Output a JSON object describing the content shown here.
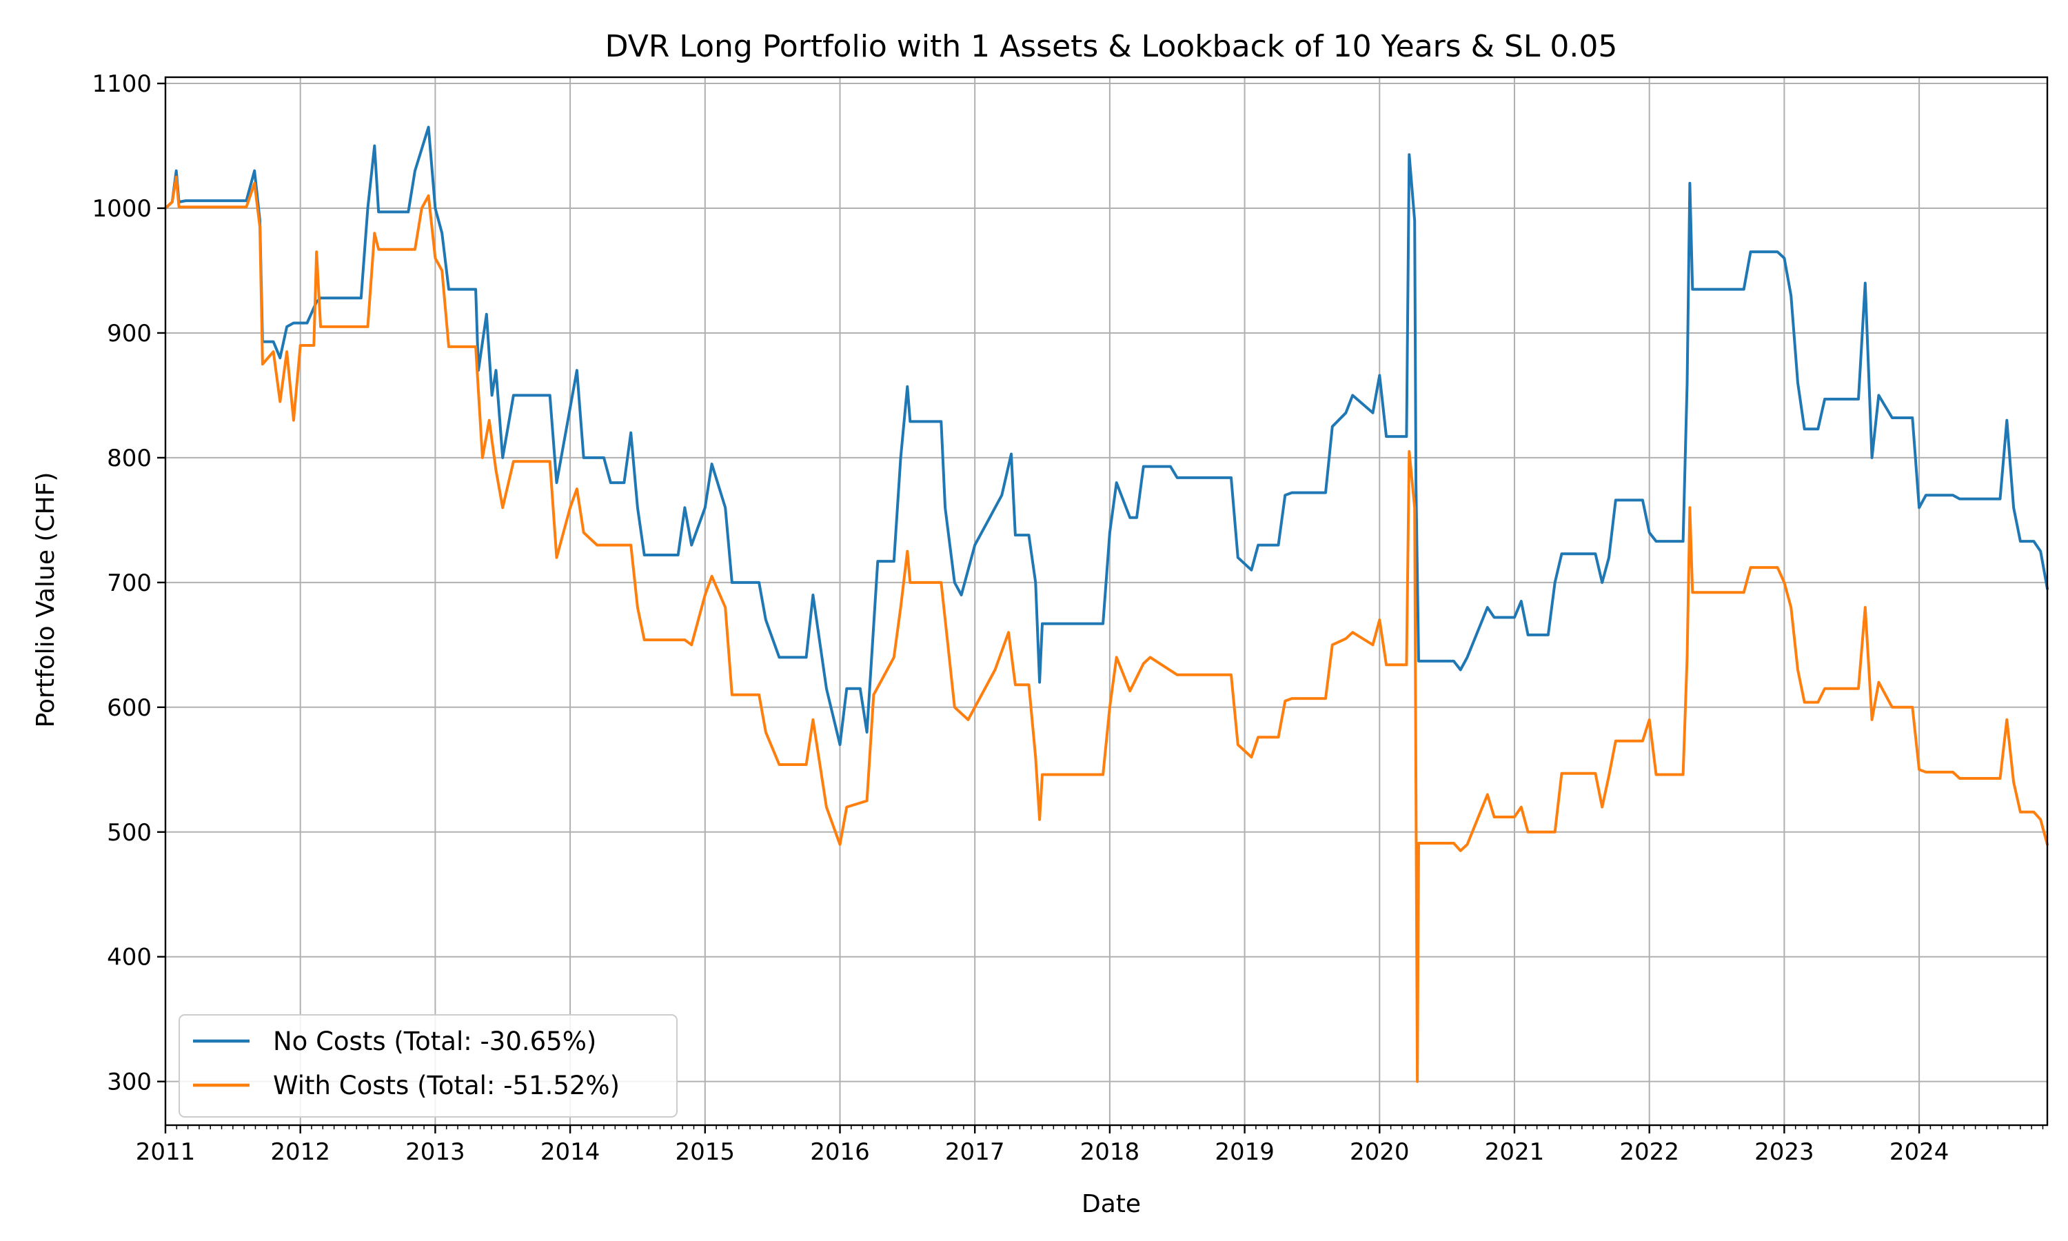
{
  "chart_data": {
    "type": "line",
    "title": "DVR Long Portfolio with 1 Assets & Lookback of 10 Years & SL 0.05",
    "xlabel": "Date",
    "ylabel": "Portfolio Value (CHF)",
    "xlim": [
      2011.0,
      2024.95
    ],
    "ylim": [
      265,
      1105
    ],
    "xticks": [
      "2011",
      "2012",
      "2013",
      "2014",
      "2015",
      "2016",
      "2017",
      "2018",
      "2019",
      "2020",
      "2021",
      "2022",
      "2023",
      "2024"
    ],
    "yticks": [
      300,
      400,
      500,
      600,
      700,
      800,
      900,
      1000,
      1100
    ],
    "grid": true,
    "legend_position": "lower-left",
    "series": [
      {
        "name": "No Costs (Total: -30.65%)",
        "color": "#1f77b4",
        "points": [
          [
            2011.0,
            1000
          ],
          [
            2011.05,
            1005
          ],
          [
            2011.08,
            1030
          ],
          [
            2011.1,
            1005
          ],
          [
            2011.15,
            1006
          ],
          [
            2011.6,
            1006
          ],
          [
            2011.66,
            1030
          ],
          [
            2011.7,
            990
          ],
          [
            2011.72,
            893
          ],
          [
            2011.8,
            893
          ],
          [
            2011.85,
            880
          ],
          [
            2011.9,
            905
          ],
          [
            2011.95,
            908
          ],
          [
            2012.05,
            908
          ],
          [
            2012.12,
            925
          ],
          [
            2012.15,
            928
          ],
          [
            2012.45,
            928
          ],
          [
            2012.5,
            1000
          ],
          [
            2012.55,
            1050
          ],
          [
            2012.58,
            997
          ],
          [
            2012.8,
            997
          ],
          [
            2012.85,
            1030
          ],
          [
            2012.95,
            1065
          ],
          [
            2013.0,
            1000
          ],
          [
            2013.05,
            980
          ],
          [
            2013.1,
            935
          ],
          [
            2013.3,
            935
          ],
          [
            2013.32,
            870
          ],
          [
            2013.38,
            915
          ],
          [
            2013.42,
            850
          ],
          [
            2013.45,
            870
          ],
          [
            2013.5,
            800
          ],
          [
            2013.58,
            850
          ],
          [
            2013.85,
            850
          ],
          [
            2013.9,
            780
          ],
          [
            2014.0,
            840
          ],
          [
            2014.05,
            870
          ],
          [
            2014.1,
            800
          ],
          [
            2014.25,
            800
          ],
          [
            2014.3,
            780
          ],
          [
            2014.4,
            780
          ],
          [
            2014.45,
            820
          ],
          [
            2014.5,
            760
          ],
          [
            2014.55,
            722
          ],
          [
            2014.8,
            722
          ],
          [
            2014.85,
            760
          ],
          [
            2014.9,
            730
          ],
          [
            2015.0,
            760
          ],
          [
            2015.05,
            795
          ],
          [
            2015.15,
            760
          ],
          [
            2015.2,
            700
          ],
          [
            2015.4,
            700
          ],
          [
            2015.45,
            670
          ],
          [
            2015.55,
            640
          ],
          [
            2015.75,
            640
          ],
          [
            2015.8,
            690
          ],
          [
            2015.9,
            615
          ],
          [
            2016.0,
            570
          ],
          [
            2016.05,
            615
          ],
          [
            2016.15,
            615
          ],
          [
            2016.2,
            580
          ],
          [
            2016.28,
            717
          ],
          [
            2016.4,
            717
          ],
          [
            2016.45,
            800
          ],
          [
            2016.5,
            857
          ],
          [
            2016.52,
            829
          ],
          [
            2016.75,
            829
          ],
          [
            2016.78,
            760
          ],
          [
            2016.85,
            700
          ],
          [
            2016.9,
            690
          ],
          [
            2017.0,
            730
          ],
          [
            2017.1,
            750
          ],
          [
            2017.2,
            770
          ],
          [
            2017.27,
            803
          ],
          [
            2017.3,
            738
          ],
          [
            2017.4,
            738
          ],
          [
            2017.45,
            700
          ],
          [
            2017.48,
            620
          ],
          [
            2017.5,
            667
          ],
          [
            2017.95,
            667
          ],
          [
            2018.0,
            740
          ],
          [
            2018.05,
            780
          ],
          [
            2018.15,
            752
          ],
          [
            2018.2,
            752
          ],
          [
            2018.25,
            793
          ],
          [
            2018.45,
            793
          ],
          [
            2018.5,
            784
          ],
          [
            2018.9,
            784
          ],
          [
            2018.95,
            720
          ],
          [
            2019.05,
            710
          ],
          [
            2019.1,
            730
          ],
          [
            2019.25,
            730
          ],
          [
            2019.3,
            770
          ],
          [
            2019.35,
            772
          ],
          [
            2019.6,
            772
          ],
          [
            2019.65,
            825
          ],
          [
            2019.75,
            836
          ],
          [
            2019.8,
            850
          ],
          [
            2019.95,
            836
          ],
          [
            2020.0,
            866
          ],
          [
            2020.05,
            817
          ],
          [
            2020.2,
            817
          ],
          [
            2020.22,
            1043
          ],
          [
            2020.26,
            990
          ],
          [
            2020.27,
            780
          ],
          [
            2020.29,
            637
          ],
          [
            2020.55,
            637
          ],
          [
            2020.6,
            630
          ],
          [
            2020.65,
            640
          ],
          [
            2020.8,
            680
          ],
          [
            2020.85,
            672
          ],
          [
            2021.0,
            672
          ],
          [
            2021.05,
            685
          ],
          [
            2021.1,
            658
          ],
          [
            2021.25,
            658
          ],
          [
            2021.3,
            700
          ],
          [
            2021.35,
            723
          ],
          [
            2021.6,
            723
          ],
          [
            2021.65,
            700
          ],
          [
            2021.7,
            720
          ],
          [
            2021.75,
            766
          ],
          [
            2021.95,
            766
          ],
          [
            2022.0,
            740
          ],
          [
            2022.05,
            733
          ],
          [
            2022.25,
            733
          ],
          [
            2022.28,
            860
          ],
          [
            2022.3,
            1020
          ],
          [
            2022.32,
            935
          ],
          [
            2022.7,
            935
          ],
          [
            2022.75,
            965
          ],
          [
            2022.95,
            965
          ],
          [
            2023.0,
            960
          ],
          [
            2023.05,
            930
          ],
          [
            2023.1,
            860
          ],
          [
            2023.15,
            823
          ],
          [
            2023.25,
            823
          ],
          [
            2023.3,
            847
          ],
          [
            2023.55,
            847
          ],
          [
            2023.6,
            940
          ],
          [
            2023.65,
            800
          ],
          [
            2023.7,
            850
          ],
          [
            2023.8,
            832
          ],
          [
            2023.95,
            832
          ],
          [
            2024.0,
            760
          ],
          [
            2024.05,
            770
          ],
          [
            2024.25,
            770
          ],
          [
            2024.3,
            767
          ],
          [
            2024.6,
            767
          ],
          [
            2024.65,
            830
          ],
          [
            2024.7,
            760
          ],
          [
            2024.75,
            733
          ],
          [
            2024.85,
            733
          ],
          [
            2024.9,
            725
          ],
          [
            2024.95,
            695
          ]
        ]
      },
      {
        "name": "With Costs (Total: -51.52%)",
        "color": "#ff7f0e",
        "points": [
          [
            2011.0,
            1000
          ],
          [
            2011.05,
            1005
          ],
          [
            2011.08,
            1025
          ],
          [
            2011.1,
            1001
          ],
          [
            2011.6,
            1001
          ],
          [
            2011.66,
            1020
          ],
          [
            2011.7,
            985
          ],
          [
            2011.72,
            875
          ],
          [
            2011.8,
            885
          ],
          [
            2011.85,
            845
          ],
          [
            2011.9,
            885
          ],
          [
            2011.95,
            830
          ],
          [
            2012.0,
            890
          ],
          [
            2012.1,
            890
          ],
          [
            2012.12,
            965
          ],
          [
            2012.15,
            905
          ],
          [
            2012.5,
            905
          ],
          [
            2012.55,
            980
          ],
          [
            2012.58,
            967
          ],
          [
            2012.85,
            967
          ],
          [
            2012.9,
            1000
          ],
          [
            2012.95,
            1010
          ],
          [
            2013.0,
            960
          ],
          [
            2013.05,
            950
          ],
          [
            2013.1,
            889
          ],
          [
            2013.3,
            889
          ],
          [
            2013.35,
            800
          ],
          [
            2013.4,
            830
          ],
          [
            2013.45,
            790
          ],
          [
            2013.5,
            760
          ],
          [
            2013.58,
            797
          ],
          [
            2013.85,
            797
          ],
          [
            2013.9,
            720
          ],
          [
            2014.0,
            760
          ],
          [
            2014.05,
            775
          ],
          [
            2014.1,
            740
          ],
          [
            2014.2,
            730
          ],
          [
            2014.45,
            730
          ],
          [
            2014.5,
            680
          ],
          [
            2014.55,
            654
          ],
          [
            2014.85,
            654
          ],
          [
            2014.9,
            650
          ],
          [
            2015.0,
            690
          ],
          [
            2015.05,
            705
          ],
          [
            2015.15,
            680
          ],
          [
            2015.2,
            610
          ],
          [
            2015.4,
            610
          ],
          [
            2015.45,
            580
          ],
          [
            2015.55,
            554
          ],
          [
            2015.75,
            554
          ],
          [
            2015.8,
            590
          ],
          [
            2015.9,
            520
          ],
          [
            2016.0,
            490
          ],
          [
            2016.05,
            520
          ],
          [
            2016.2,
            525
          ],
          [
            2016.25,
            610
          ],
          [
            2016.4,
            640
          ],
          [
            2016.45,
            680
          ],
          [
            2016.5,
            725
          ],
          [
            2016.52,
            700
          ],
          [
            2016.75,
            700
          ],
          [
            2016.8,
            650
          ],
          [
            2016.85,
            600
          ],
          [
            2016.95,
            590
          ],
          [
            2017.05,
            610
          ],
          [
            2017.15,
            630
          ],
          [
            2017.25,
            660
          ],
          [
            2017.3,
            618
          ],
          [
            2017.4,
            618
          ],
          [
            2017.45,
            560
          ],
          [
            2017.48,
            510
          ],
          [
            2017.5,
            546
          ],
          [
            2017.95,
            546
          ],
          [
            2018.0,
            600
          ],
          [
            2018.05,
            640
          ],
          [
            2018.15,
            613
          ],
          [
            2018.25,
            635
          ],
          [
            2018.3,
            640
          ],
          [
            2018.5,
            626
          ],
          [
            2018.9,
            626
          ],
          [
            2018.95,
            570
          ],
          [
            2019.05,
            560
          ],
          [
            2019.1,
            576
          ],
          [
            2019.25,
            576
          ],
          [
            2019.3,
            605
          ],
          [
            2019.35,
            607
          ],
          [
            2019.6,
            607
          ],
          [
            2019.65,
            650
          ],
          [
            2019.75,
            655
          ],
          [
            2019.8,
            660
          ],
          [
            2019.95,
            650
          ],
          [
            2020.0,
            670
          ],
          [
            2020.05,
            634
          ],
          [
            2020.2,
            634
          ],
          [
            2020.22,
            805
          ],
          [
            2020.26,
            760
          ],
          [
            2020.28,
            300
          ],
          [
            2020.29,
            491
          ],
          [
            2020.55,
            491
          ],
          [
            2020.6,
            485
          ],
          [
            2020.65,
            490
          ],
          [
            2020.8,
            530
          ],
          [
            2020.85,
            512
          ],
          [
            2021.0,
            512
          ],
          [
            2021.05,
            520
          ],
          [
            2021.1,
            500
          ],
          [
            2021.3,
            500
          ],
          [
            2021.35,
            547
          ],
          [
            2021.6,
            547
          ],
          [
            2021.65,
            520
          ],
          [
            2021.7,
            545
          ],
          [
            2021.75,
            573
          ],
          [
            2021.95,
            573
          ],
          [
            2022.0,
            590
          ],
          [
            2022.05,
            546
          ],
          [
            2022.25,
            546
          ],
          [
            2022.28,
            640
          ],
          [
            2022.3,
            760
          ],
          [
            2022.32,
            692
          ],
          [
            2022.7,
            692
          ],
          [
            2022.75,
            712
          ],
          [
            2022.95,
            712
          ],
          [
            2023.0,
            700
          ],
          [
            2023.05,
            680
          ],
          [
            2023.1,
            630
          ],
          [
            2023.15,
            604
          ],
          [
            2023.25,
            604
          ],
          [
            2023.3,
            615
          ],
          [
            2023.55,
            615
          ],
          [
            2023.6,
            680
          ],
          [
            2023.65,
            590
          ],
          [
            2023.7,
            620
          ],
          [
            2023.8,
            600
          ],
          [
            2023.95,
            600
          ],
          [
            2024.0,
            550
          ],
          [
            2024.05,
            548
          ],
          [
            2024.25,
            548
          ],
          [
            2024.3,
            543
          ],
          [
            2024.6,
            543
          ],
          [
            2024.65,
            590
          ],
          [
            2024.7,
            540
          ],
          [
            2024.75,
            516
          ],
          [
            2024.85,
            516
          ],
          [
            2024.9,
            510
          ],
          [
            2024.95,
            490
          ]
        ]
      }
    ]
  }
}
